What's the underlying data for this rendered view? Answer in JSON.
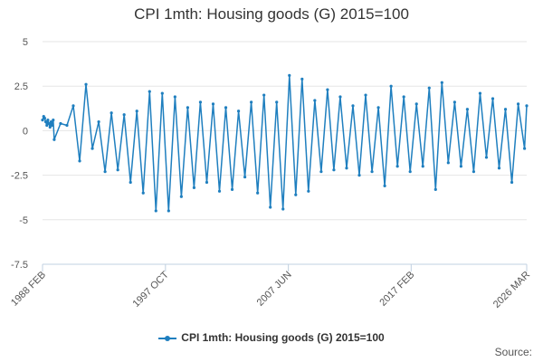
{
  "chart_data": {
    "type": "line",
    "title": "CPI 1mth: Housing goods (G) 2015=100",
    "xlabel": "",
    "ylabel": "",
    "ylim": [
      -7.5,
      5
    ],
    "yticks": [
      5,
      2.5,
      0,
      -2.5,
      -5,
      -7.5
    ],
    "ytick_labels": [
      "5",
      "2.5",
      "0",
      "-2.5",
      "-5",
      "-7.5"
    ],
    "xrange": [
      1988.08,
      2026.17
    ],
    "xticks": [
      {
        "x": 1988.08,
        "label": "1988 FEB"
      },
      {
        "x": 1997.75,
        "label": "1997 OCT"
      },
      {
        "x": 2007.42,
        "label": "2007 JUN"
      },
      {
        "x": 2017.08,
        "label": "2017 FEB"
      },
      {
        "x": 2026.17,
        "label": "2026 MAR"
      }
    ],
    "grid": true,
    "legend": "bottom-center",
    "series": [
      {
        "name": "CPI 1mth: Housing goods (G) 2015=100",
        "color": "#1f7fbf",
        "x": [
          1988.08,
          1988.17,
          1988.25,
          1988.33,
          1988.42,
          1988.5,
          1988.58,
          1988.67,
          1988.75,
          1988.83,
          1988.92,
          1989.0,
          1989.5,
          1990.0,
          1990.5,
          1991.0,
          1991.5,
          1992.0,
          1992.5,
          1993.0,
          1993.5,
          1994.0,
          1994.5,
          1995.0,
          1995.5,
          1996.0,
          1996.5,
          1997.0,
          1997.5,
          1998.0,
          1998.5,
          1999.0,
          1999.5,
          2000.0,
          2000.5,
          2001.0,
          2001.5,
          2002.0,
          2002.5,
          2003.0,
          2003.5,
          2004.0,
          2004.5,
          2005.0,
          2005.5,
          2006.0,
          2006.5,
          2007.0,
          2007.5,
          2008.0,
          2008.5,
          2009.0,
          2009.5,
          2010.0,
          2010.5,
          2011.0,
          2011.5,
          2012.0,
          2012.5,
          2013.0,
          2013.5,
          2014.0,
          2014.5,
          2015.0,
          2015.5,
          2016.0,
          2016.5,
          2017.0,
          2017.5,
          2018.0,
          2018.5,
          2019.0,
          2019.5,
          2020.0,
          2020.5,
          2021.0,
          2021.5,
          2022.0,
          2022.5,
          2023.0,
          2023.5,
          2024.0,
          2024.5,
          2025.0,
          2025.5,
          2026.0,
          2026.17
        ],
        "values": [
          0.6,
          0.8,
          0.7,
          0.5,
          0.3,
          0.6,
          0.4,
          0.2,
          0.5,
          0.3,
          0.6,
          -0.5,
          0.4,
          0.3,
          1.4,
          -1.7,
          2.6,
          -1.0,
          0.5,
          -2.3,
          1.0,
          -2.2,
          0.9,
          -2.9,
          1.1,
          -3.5,
          2.2,
          -4.5,
          2.1,
          -4.5,
          1.9,
          -3.7,
          1.3,
          -3.2,
          1.6,
          -2.9,
          1.5,
          -3.4,
          1.3,
          -3.3,
          1.1,
          -2.6,
          1.6,
          -3.5,
          2.0,
          -4.3,
          1.6,
          -4.4,
          3.1,
          -3.6,
          2.9,
          -3.4,
          1.7,
          -2.3,
          2.3,
          -2.2,
          1.9,
          -2.1,
          1.4,
          -2.5,
          2.0,
          -2.3,
          1.3,
          -3.1,
          2.5,
          -2.0,
          1.9,
          -2.3,
          1.5,
          -2.0,
          2.4,
          -3.3,
          2.7,
          -1.8,
          1.6,
          -2.0,
          1.2,
          -2.3,
          2.1,
          -1.5,
          1.8,
          -2.1,
          1.2,
          -2.9,
          1.5,
          -1.0,
          1.4
        ]
      }
    ]
  },
  "source_label": "Source:"
}
